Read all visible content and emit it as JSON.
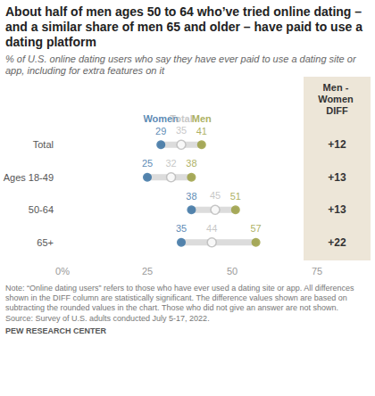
{
  "chart_data": {
    "type": "dot",
    "title": "About half of men ages 50 to 64 who’ve tried online dating – and a similar share of men 65 and older – have paid to use a dating platform",
    "subtitle": "% of U.S. online dating users who say they have ever paid to use a dating site or app, including for extra features on it",
    "categories": [
      "Total",
      "Ages 18-49",
      "50-64",
      "65+"
    ],
    "series": [
      {
        "name": "Women",
        "color": "#2f6b9f",
        "marker": "circle",
        "values": [
          29,
          25,
          38,
          35
        ]
      },
      {
        "name": "Total",
        "color": "#b8b8b8",
        "marker": "open_circle",
        "values": [
          35,
          32,
          45,
          44
        ]
      },
      {
        "name": "Men",
        "color": "#979b38",
        "marker": "circle",
        "values": [
          41,
          38,
          51,
          57
        ]
      }
    ],
    "xlim": [
      0,
      75
    ],
    "xticks": [
      {
        "value": 0,
        "label": "0%"
      },
      25,
      50,
      75
    ],
    "grid": false,
    "data_labels": true,
    "diff": {
      "title": "Men - Women DIFF",
      "values": [
        12,
        13,
        13,
        22
      ],
      "value_labels": [
        "+12",
        "+13",
        "+13",
        "+22"
      ]
    },
    "notes": [
      "Note: “Online dating users” refers to those who have ever used a dating site or app. All differences shown in the DIFF column are statistically significant. The difference values shown are based on subtracting the rounded values in the chart. Those who did not give an answer are not shown.",
      "Source: Survey of U.S. adults conducted July 5-17, 2022."
    ],
    "credit": "PEW RESEARCH CENTER"
  }
}
